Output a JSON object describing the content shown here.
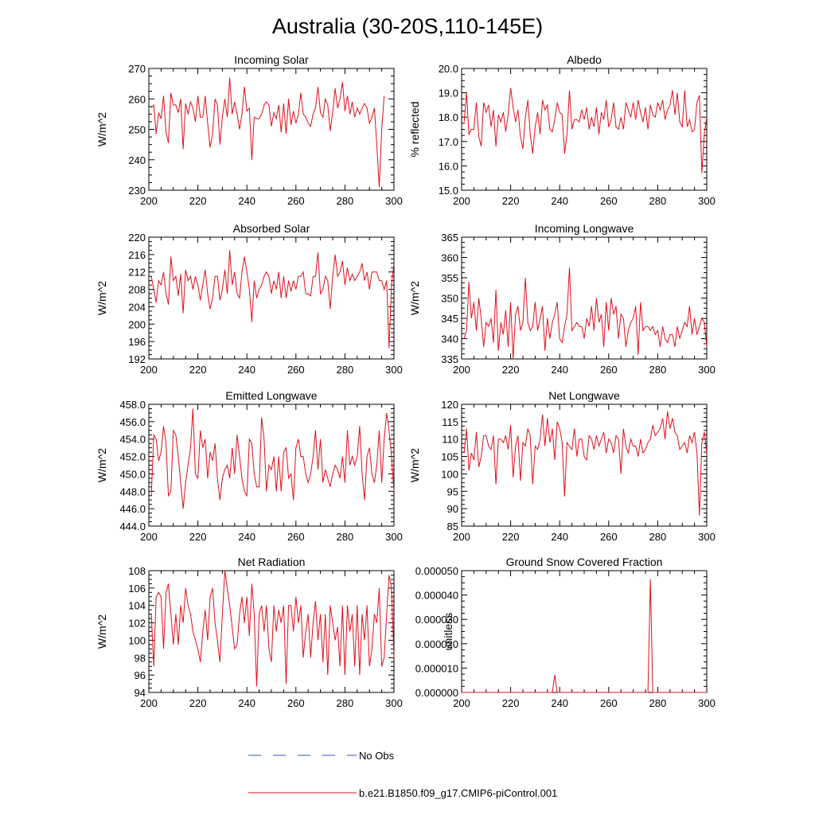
{
  "figure": {
    "title": "Australia (30-20S,110-145E)"
  },
  "legend": {
    "position": "bottom-center",
    "entries": [
      {
        "label": "No Obs",
        "color": "#3355cc",
        "style": "dashed"
      },
      {
        "label": "b.e21.B1850.f09_g17.CMIP6-piControl.001",
        "color": "#e0101a",
        "style": "solid"
      }
    ]
  },
  "colors": {
    "model": "#e0101a",
    "obs": "#3355cc",
    "axis": "#000000"
  },
  "chart_data": [
    {
      "type": "line",
      "title": "Incoming Solar",
      "ylabel": "W/m^2",
      "xlim": [
        200,
        300
      ],
      "ylim": [
        230,
        270
      ],
      "xticks": [
        "200",
        "220",
        "240",
        "260",
        "280",
        "300"
      ],
      "yticks": [
        "230",
        "240",
        "250",
        "260",
        "270"
      ],
      "series": [
        {
          "name": "b.e21.B1850.f09_g17.CMIP6-piControl.001",
          "x_start": 201,
          "x_step": 1,
          "values": [
            257,
            258,
            248.5,
            255.5,
            253.5,
            261,
            249,
            245.5,
            262,
            258,
            258,
            255.5,
            260,
            243.5,
            258.5,
            255,
            259,
            257,
            252.5,
            261,
            254,
            254,
            261,
            252,
            244,
            248.5,
            260,
            258,
            245,
            254,
            260,
            254,
            267,
            255,
            259,
            255,
            250,
            255,
            264,
            256,
            257,
            240,
            254,
            253.5,
            253.5,
            255,
            258,
            259,
            258,
            251,
            255.5,
            253.5,
            258,
            249,
            258.5,
            248.5,
            260,
            251.5,
            256,
            252,
            255,
            262,
            255,
            254,
            252,
            251,
            255,
            257,
            264,
            255.5,
            254,
            260,
            258,
            249.5,
            255.5,
            263.5,
            257,
            260,
            265.5,
            256,
            261,
            255,
            259,
            254,
            257,
            255,
            257,
            258.5,
            257,
            252,
            254,
            257,
            245,
            231,
            250,
            261
          ]
        }
      ]
    },
    {
      "type": "line",
      "title": "Albedo",
      "ylabel": "% reflected",
      "xlim": [
        200,
        300
      ],
      "ylim": [
        15.0,
        20.0
      ],
      "xticks": [
        "200",
        "220",
        "240",
        "260",
        "280",
        "300"
      ],
      "yticks": [
        "15.0",
        "16.0",
        "17.0",
        "18.0",
        "19.0",
        "20.0"
      ],
      "series": [
        {
          "name": "b.e21.B1850.f09_g17.CMIP6-piControl.001",
          "x_start": 201,
          "x_step": 1,
          "values": [
            17.8,
            19.0,
            17.3,
            17.5,
            17.5,
            18.6,
            17.2,
            16.8,
            18.6,
            18.2,
            18.5,
            17.6,
            18.3,
            16.8,
            18.1,
            17.8,
            18.2,
            17.4,
            18.1,
            19.2,
            18.4,
            17.8,
            18.3,
            17.2,
            16.7,
            18.0,
            18.7,
            17.3,
            16.5,
            17.6,
            18.2,
            17.3,
            18.7,
            18.3,
            18.5,
            17.5,
            17.4,
            17.9,
            18.6,
            18.2,
            18.1,
            16.5,
            17.3,
            19.1,
            17.5,
            17.9,
            17.9,
            17.8,
            18.3,
            17.9,
            18.4,
            17.5,
            18.0,
            17.6,
            18.4,
            17.3,
            18.2,
            17.9,
            18.7,
            17.6,
            17.9,
            18.6,
            17.6,
            17.5,
            18.0,
            17.5,
            18.6,
            18.3,
            18.0,
            18.6,
            17.9,
            18.7,
            18.2,
            17.8,
            18.4,
            17.5,
            18.5,
            18.1,
            18.0,
            18.6,
            18.3,
            18.7,
            17.9,
            18.3,
            18.5,
            19.1,
            18.1,
            19.0,
            17.8,
            17.6,
            19.1,
            17.6,
            17.9,
            17.4,
            17.5,
            18.6,
            18.9,
            15.7,
            17.3,
            18.0
          ]
        }
      ]
    },
    {
      "type": "line",
      "title": "Absorbed Solar",
      "ylabel": "W/m^2",
      "xlim": [
        200,
        300
      ],
      "ylim": [
        192,
        220
      ],
      "xticks": [
        "200",
        "220",
        "240",
        "260",
        "280",
        "300"
      ],
      "yticks": [
        "192",
        "196",
        "200",
        "204",
        "208",
        "212",
        "216",
        "220"
      ],
      "series": [
        {
          "name": "b.e21.B1850.f09_g17.CMIP6-piControl.001",
          "x_start": 201,
          "x_step": 1,
          "values": [
            211,
            208,
            205,
            210,
            209,
            212,
            207,
            204.5,
            215.5,
            210,
            211,
            206.5,
            211.5,
            202.5,
            212.5,
            210,
            211,
            208,
            211,
            209,
            205.5,
            209,
            212.5,
            207,
            203.5,
            206,
            211,
            211,
            205.5,
            208,
            212.5,
            207,
            217,
            209,
            212,
            207,
            206,
            212,
            215.5,
            212,
            208,
            200.5,
            210,
            206,
            208,
            209,
            211,
            212,
            211,
            207,
            210,
            208,
            212,
            206,
            211,
            206,
            210,
            207.5,
            210,
            208,
            211,
            211,
            212,
            207,
            207,
            206.5,
            211,
            211,
            216.5,
            207,
            208,
            211,
            210,
            203.5,
            211,
            216,
            211,
            212,
            214.5,
            209,
            213,
            210,
            211.5,
            210,
            211,
            212,
            214,
            210,
            212,
            208,
            212,
            212,
            212,
            210,
            210,
            208,
            210,
            194.5,
            209,
            214
          ]
        }
      ]
    },
    {
      "type": "line",
      "title": "Incoming Longwave",
      "ylabel": "W/m^2",
      "xlim": [
        200,
        300
      ],
      "ylim": [
        335,
        365
      ],
      "xticks": [
        "200",
        "220",
        "240",
        "260",
        "280",
        "300"
      ],
      "yticks": [
        "335",
        "340",
        "345",
        "350",
        "355",
        "360",
        "365"
      ],
      "series": [
        {
          "name": "b.e21.B1850.f09_g17.CMIP6-piControl.001",
          "x_start": 201,
          "x_step": 1,
          "values": [
            340,
            342,
            354,
            345,
            349,
            342,
            350,
            345,
            338,
            344,
            343,
            345,
            339,
            352,
            337,
            344,
            341,
            347,
            338,
            349,
            335,
            346,
            348,
            342,
            344,
            355,
            344,
            342,
            343,
            349,
            342,
            345,
            348,
            337,
            345,
            340,
            344,
            346,
            349,
            340,
            339,
            343,
            346,
            357.5,
            342,
            343,
            344,
            343,
            343,
            340,
            345,
            343,
            348,
            342,
            350,
            344,
            346,
            338,
            349,
            342,
            350,
            346,
            348,
            340,
            346,
            345,
            338,
            342,
            344,
            345,
            348,
            336,
            349,
            342,
            343,
            343,
            342,
            343,
            341,
            342,
            338,
            343,
            340,
            339,
            341,
            341,
            338,
            343,
            340,
            342,
            344,
            343,
            348,
            341,
            345,
            341,
            343,
            345,
            344,
            338
          ]
        }
      ]
    },
    {
      "type": "line",
      "title": "Emitted Longwave",
      "ylabel": "W/m^2",
      "xlim": [
        200,
        300
      ],
      "ylim": [
        444.0,
        458.0
      ],
      "xticks": [
        "200",
        "220",
        "240",
        "260",
        "280",
        "300"
      ],
      "yticks": [
        "444.0",
        "446.0",
        "448.0",
        "450.0",
        "452.0",
        "454.0",
        "456.0",
        "458.0"
      ],
      "series": [
        {
          "name": "b.e21.B1850.f09_g17.CMIP6-piControl.001",
          "x_start": 201,
          "x_step": 1,
          "values": [
            447.5,
            454.5,
            454,
            451.5,
            452.5,
            455.5,
            453.5,
            447.5,
            448,
            455,
            454.5,
            452,
            449,
            446,
            449,
            451,
            453,
            457.5,
            450,
            449.5,
            455,
            453,
            454,
            449.5,
            452.5,
            451.5,
            453.5,
            449.5,
            447,
            449.5,
            450.5,
            451,
            449.5,
            453,
            450,
            454.5,
            452,
            449.5,
            448,
            447.5,
            454,
            453.5,
            450,
            448.5,
            448.5,
            456.5,
            454,
            448,
            451,
            450.5,
            452,
            448,
            452,
            448,
            452.5,
            453,
            449.5,
            450,
            447,
            453,
            454,
            452,
            452,
            450,
            449,
            450,
            452,
            455,
            450.5,
            454,
            449,
            450.5,
            449.5,
            448.5,
            450,
            451,
            450.5,
            449.5,
            452,
            449,
            455,
            451,
            452,
            451,
            452,
            455.5,
            450,
            447,
            452,
            453,
            450,
            449,
            451,
            455,
            449,
            454,
            457,
            455,
            452,
            448
          ]
        }
      ]
    },
    {
      "type": "line",
      "title": "Net Longwave",
      "ylabel": "W/m^2",
      "xlim": [
        200,
        300
      ],
      "ylim": [
        85,
        120
      ],
      "xticks": [
        "200",
        "220",
        "240",
        "260",
        "280",
        "300"
      ],
      "yticks": [
        "85",
        "90",
        "95",
        "100",
        "105",
        "110",
        "115",
        "120"
      ],
      "series": [
        {
          "name": "b.e21.B1850.f09_g17.CMIP6-piControl.001",
          "x_start": 201,
          "x_step": 1,
          "values": [
            106,
            113,
            101,
            106,
            104,
            112,
            102,
            105,
            111,
            111,
            108,
            107,
            111,
            97,
            110,
            110,
            109,
            111,
            107,
            114,
            99,
            108,
            111,
            98,
            109,
            108,
            113,
            111,
            97,
            108,
            107,
            110,
            117,
            108,
            116,
            109,
            113,
            104,
            115,
            113,
            109,
            93.5,
            109,
            108,
            107,
            113,
            105,
            110,
            110,
            105,
            104,
            111,
            110,
            107,
            111,
            108,
            110,
            112,
            106,
            110,
            109,
            106,
            111,
            110,
            100,
            113,
            108,
            106,
            110,
            108,
            108,
            105,
            110,
            106,
            107,
            109,
            110,
            114,
            111,
            112,
            113,
            116,
            110,
            118,
            113,
            116,
            112,
            111,
            107,
            108,
            109,
            106,
            111,
            109,
            112,
            106,
            88,
            109,
            112,
            106
          ]
        }
      ]
    },
    {
      "type": "line",
      "title": "Net Radiation",
      "ylabel": "W/m^2",
      "xlim": [
        200,
        300
      ],
      "ylim": [
        94,
        108
      ],
      "xticks": [
        "200",
        "220",
        "240",
        "260",
        "280",
        "300"
      ],
      "yticks": [
        "94",
        "96",
        "98",
        "100",
        "102",
        "104",
        "106",
        "108"
      ],
      "series": [
        {
          "name": "b.e21.B1850.f09_g17.CMIP6-piControl.001",
          "x_start": 201,
          "x_step": 1,
          "values": [
            103,
            97,
            105,
            105.5,
            105,
            99,
            105.5,
            106.5,
            103,
            99.5,
            103,
            99.5,
            104,
            102,
            106,
            104,
            103,
            101,
            100,
            99,
            97.5,
            101,
            103.5,
            100,
            105,
            106,
            102,
            100,
            97.5,
            103,
            108,
            106,
            104,
            101.5,
            99,
            99.5,
            103,
            105,
            102,
            105,
            100.5,
            106.5,
            103,
            94.7,
            103,
            104,
            101,
            104,
            99,
            97.5,
            104,
            101,
            103.5,
            102,
            104,
            95,
            104,
            104,
            101,
            105,
            102,
            104,
            98,
            101,
            103,
            98,
            102,
            104.5,
            100,
            103,
            97.5,
            103,
            96,
            104,
            102,
            100,
            101.5,
            97,
            104,
            96,
            104,
            101,
            103,
            97,
            104,
            96,
            103,
            100,
            104,
            97,
            99,
            103,
            102,
            106,
            97,
            98,
            103,
            107.5,
            106,
            98
          ]
        }
      ]
    },
    {
      "type": "line",
      "title": "Ground Snow Covered Fraction",
      "ylabel": "unitless",
      "xlim": [
        200,
        300
      ],
      "ylim": [
        0.0,
        5e-05
      ],
      "xticks": [
        "200",
        "220",
        "240",
        "260",
        "280",
        "300"
      ],
      "yticks": [
        "0.000000",
        "0.000010",
        "0.000020",
        "0.000030",
        "0.000040",
        "0.000050"
      ],
      "series": [
        {
          "name": "b.e21.B1850.f09_g17.CMIP6-piControl.001",
          "x": [
            200,
            237,
            238,
            239,
            276,
            277,
            278,
            300
          ],
          "values": [
            0,
            0,
            7.2e-06,
            0,
            0,
            4.65e-05,
            0,
            0
          ]
        }
      ]
    }
  ]
}
